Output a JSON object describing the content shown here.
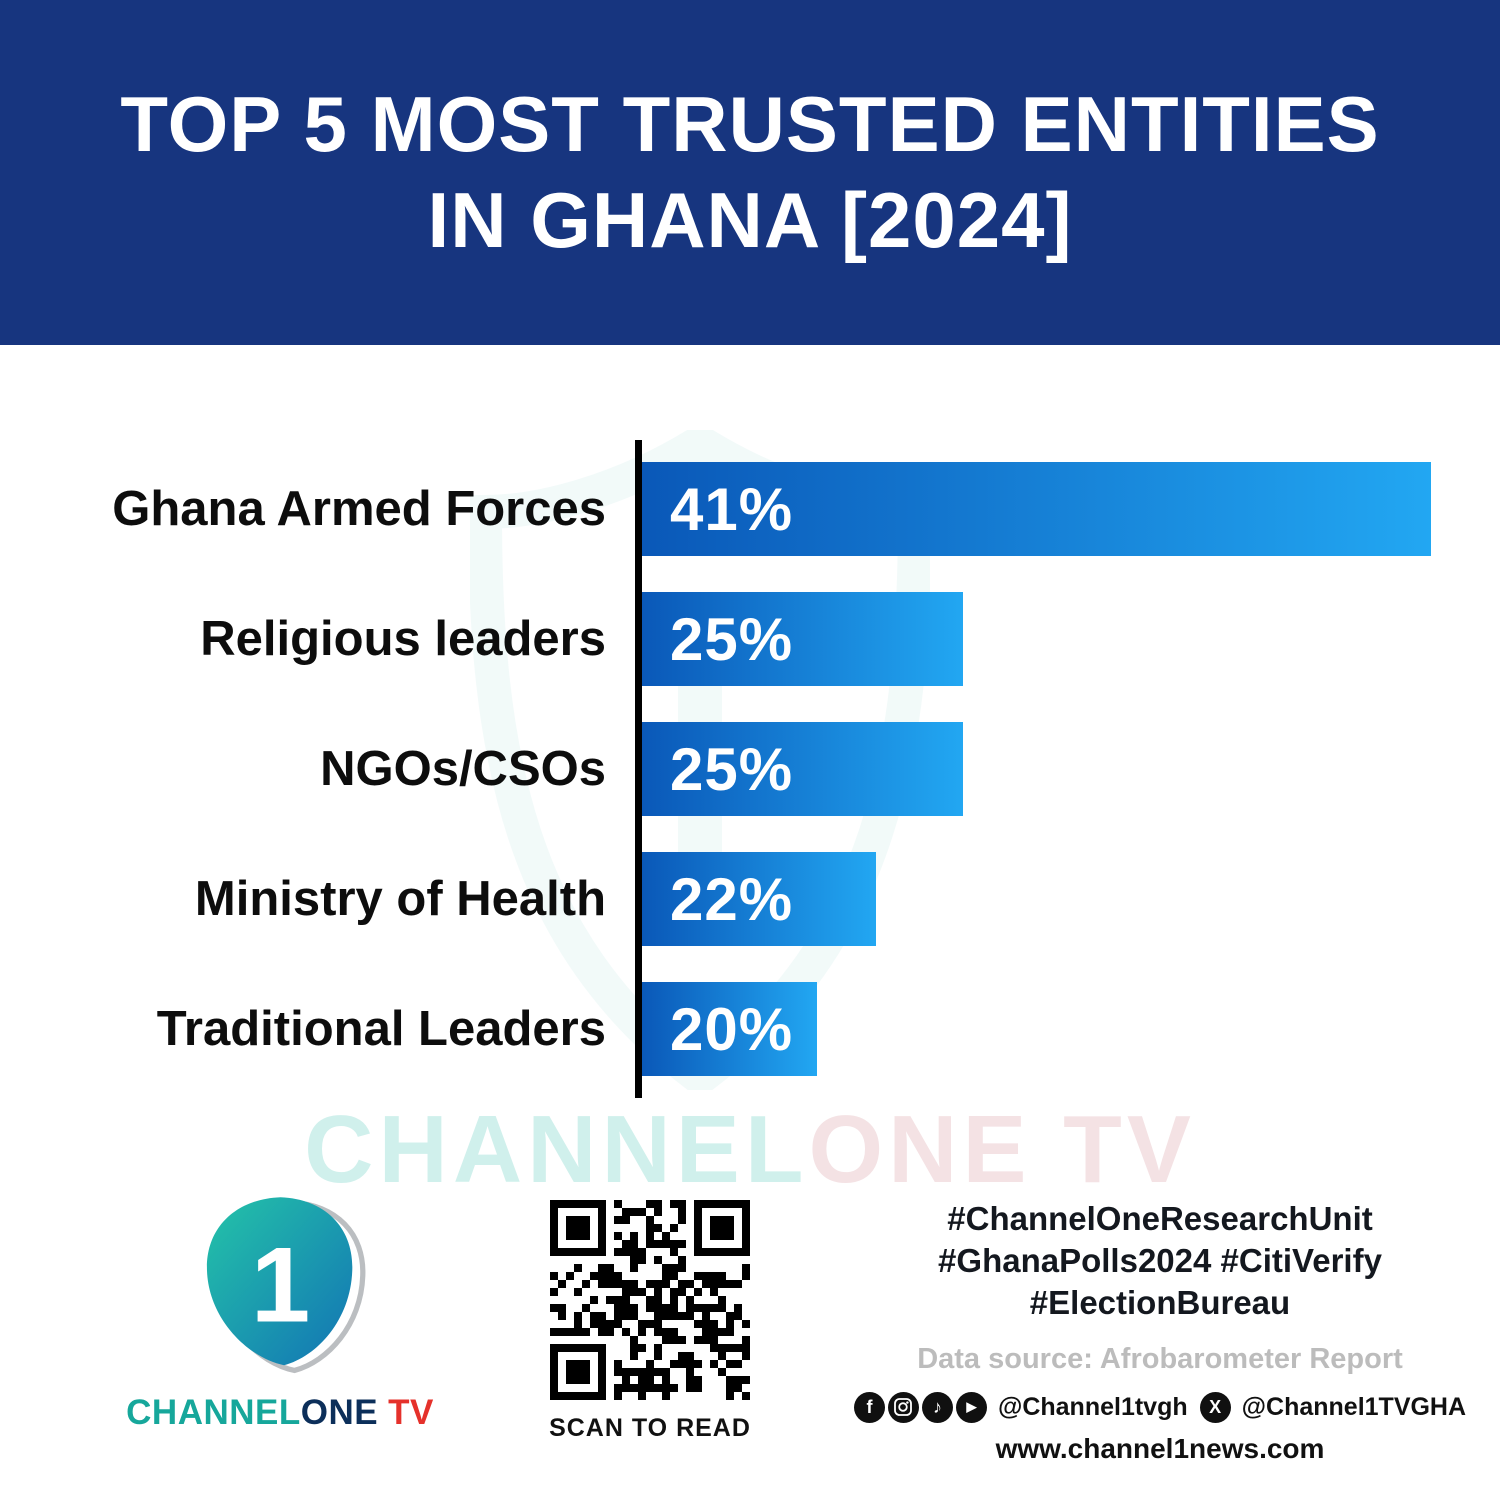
{
  "header": {
    "title_line1": "TOP 5 MOST TRUSTED ENTITIES",
    "title_line2": "IN GHANA [2024]",
    "bg_color": "#17357f"
  },
  "chart_data": {
    "type": "bar",
    "orientation": "horizontal",
    "title": "Top 5 Most Trusted Entities in Ghana [2024]",
    "categories": [
      "Ghana Armed Forces",
      "Religious leaders",
      "NGOs/CSOs",
      "Ministry of Health",
      "Traditional Leaders"
    ],
    "values": [
      41,
      25,
      25,
      22,
      20
    ],
    "value_labels": [
      "41%",
      "25%",
      "25%",
      "22%",
      "20%"
    ],
    "unit": "%",
    "xlim": [
      14,
      42
    ],
    "grid": false,
    "legend": false,
    "bar_gradient": [
      "#0a58b8",
      "#22a7f2"
    ],
    "axis_color": "#000000"
  },
  "watermark": {
    "part1": "CHANNEL",
    "part2": "ONE",
    "part3": "TV"
  },
  "footer": {
    "logo": {
      "digit": "1",
      "word_channel": "CHANNEL",
      "word_one": "ONE",
      "word_tv": "TV",
      "accent_teal": "#16a79b",
      "accent_red": "#e5312b"
    },
    "qr_caption": "SCAN TO READ",
    "hashtags_line1": "#ChannelOneResearchUnit",
    "hashtags_line2": "#GhanaPolls2024 #CitiVerify",
    "hashtags_line3": "#ElectionBureau",
    "data_source": "Data source: Afrobarometer Report",
    "social_icons": [
      "facebook",
      "instagram",
      "tiktok",
      "youtube"
    ],
    "social_handle1": "@Channel1tvgh",
    "x_icon": "x",
    "social_handle2": "@Channel1TVGHA",
    "website": "www.channel1news.com"
  }
}
